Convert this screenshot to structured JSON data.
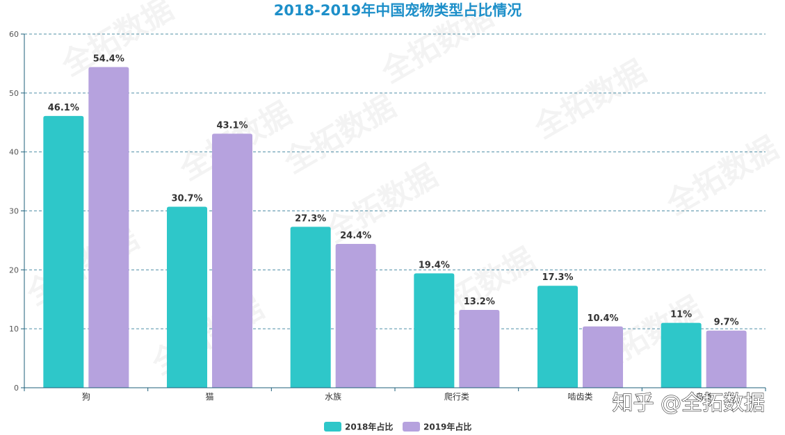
{
  "chart_data": {
    "type": "bar",
    "title": "2018-2019年中国宠物类型占比情况",
    "categories": [
      "狗",
      "猫",
      "水族",
      "爬行类",
      "啮齿类",
      "鸟类"
    ],
    "series": [
      {
        "name": "2018年占比",
        "values": [
          46.1,
          30.7,
          27.3,
          19.4,
          17.3,
          11
        ],
        "labels": [
          "46.1%",
          "30.7%",
          "27.3%",
          "19.4%",
          "17.3%",
          "11%"
        ],
        "color": "#2ec7c9"
      },
      {
        "name": "2019年占比",
        "values": [
          54.4,
          43.1,
          24.4,
          13.2,
          10.4,
          9.7
        ],
        "labels": [
          "54.4%",
          "43.1%",
          "24.4%",
          "13.2%",
          "10.4%",
          "9.7%"
        ],
        "color": "#b6a2de"
      }
    ],
    "ylim": [
      0,
      60
    ],
    "yticks": [
      0,
      10,
      20,
      30,
      40,
      50,
      60
    ],
    "xlabel": "",
    "ylabel": "",
    "grid": true,
    "legend_position": "bottom-center"
  },
  "colors": {
    "title": "#1d8fc9",
    "axis": "#1e5f7a",
    "grid": "#4f8fa6"
  },
  "watermark": "全拓数据",
  "credit": "知乎 @全拓数据"
}
